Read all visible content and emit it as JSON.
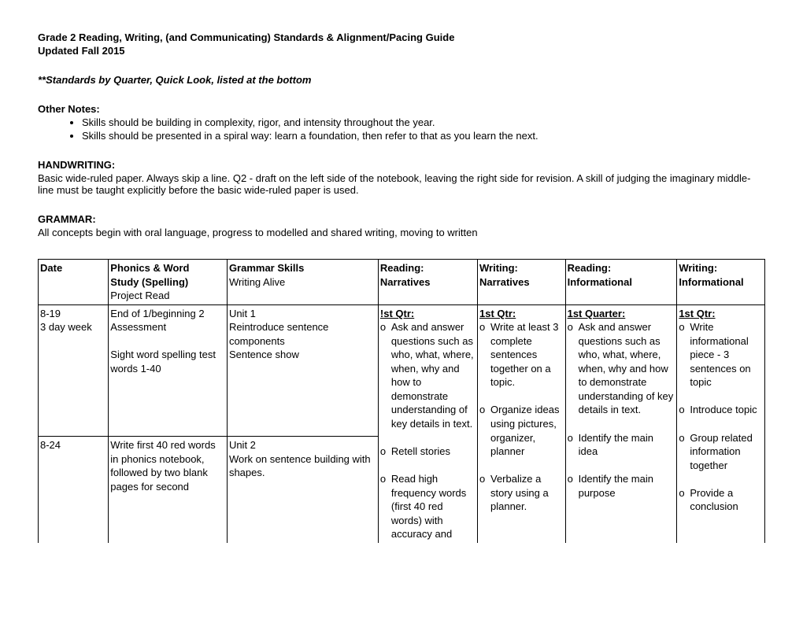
{
  "header": {
    "title": "Grade 2 Reading, Writing, (and Communicating) Standards & Alignment/Pacing Guide",
    "updated": "Updated Fall 2015",
    "standards_note": "**Standards by Quarter, Quick Look, listed at the bottom"
  },
  "other_notes": {
    "heading": "Other Notes:",
    "items": [
      "Skills should be building in complexity, rigor, and intensity throughout the year.",
      "Skills should be presented in a spiral way: learn a foundation, then refer to that as you learn the next."
    ]
  },
  "handwriting": {
    "heading": "HANDWRITING:",
    "text": "Basic wide-ruled paper. Always skip a line.  Q2 - draft on the left side of the notebook, leaving the right side for revision.  A skill of judging the imaginary middle-line must be taught explicitly before the basic wide-ruled paper is used."
  },
  "grammar": {
    "heading": "GRAMMAR:",
    "text": "All concepts begin with oral language, progress to modelled and shared writing, moving to written"
  },
  "table": {
    "headers": {
      "date": "Date",
      "phonics_l1": "Phonics & Word",
      "phonics_l2": "Study (Spelling)",
      "phonics_l3": "Project Read",
      "grammar_l1": "Grammar Skills",
      "grammar_l2": "Writing Alive",
      "rn_l1": "Reading:",
      "rn_l2": "Narratives",
      "wn_l1": "Writing:",
      "wn_l2": "Narratives",
      "ri_l1": "Reading:",
      "ri_l2": "Informational",
      "wi_l1": "Writing:",
      "wi_l2": "Informational"
    },
    "row1": {
      "date_l1": "8-19",
      "date_l2": "3 day week",
      "phonics_l1": "End of 1/beginning 2",
      "phonics_l2": "Assessment",
      "phonics_l3": "Sight word spelling test",
      "phonics_l4": "words 1-40",
      "grammar_l1": "Unit 1",
      "grammar_l2": "Reintroduce sentence",
      "grammar_l3": "components",
      "grammar_l4": "Sentence show"
    },
    "row2": {
      "date": "8-24",
      "phonics_l1": "Write first 40 red words",
      "phonics_l2": "in phonics notebook,",
      "phonics_l3": "followed by two blank",
      "phonics_l4": "pages for second",
      "grammar_l1": "Unit 2",
      "grammar_l2": "Work on sentence building with",
      "grammar_l3": "shapes."
    },
    "rn": {
      "qtr": "!st Qtr:",
      "b1": "Ask and answer questions such as who, what, where, when, why and how to demonstrate understanding of key details in text.",
      "b2": "Retell stories",
      "b3": "Read high frequency words (first 40 red words) with accuracy and"
    },
    "wn": {
      "qtr": "1st Qtr:",
      "b1": "Write at least 3 complete sentences together on a topic.",
      "b2": "Organize ideas using pictures, organizer, planner",
      "b3": "Verbalize a story using a planner."
    },
    "ri": {
      "qtr": "1st Quarter:",
      "b1": "Ask and answer questions such as who, what, where, when, why and how to demonstrate understanding of key details in text.",
      "b2": "Identify the main idea",
      "b3": "Identify the main purpose"
    },
    "wi": {
      "qtr": "1st Qtr:",
      "b1": "Write informational piece - 3 sentences on topic",
      "b2": "Introduce topic",
      "b3": "Group related information together",
      "b4": "Provide a conclusion"
    }
  }
}
